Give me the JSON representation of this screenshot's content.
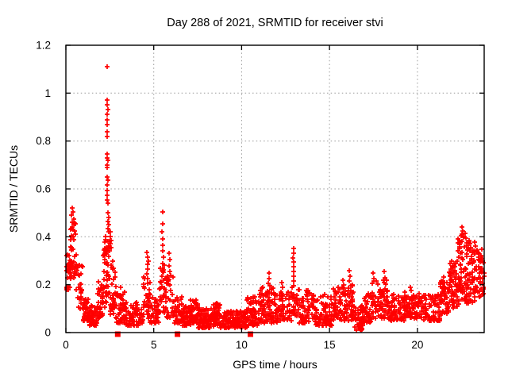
{
  "page": {
    "background": "#ffffff"
  },
  "chart_data": {
    "type": "scatter",
    "title": "Day 288 of 2021, SRMTID for receiver stvi",
    "xlabel": "GPS time / hours",
    "ylabel": "SRMTID / TECUs",
    "xlim": [
      0,
      23.8
    ],
    "ylim": [
      0,
      1.2
    ],
    "xticks": [
      0,
      5,
      10,
      15,
      20
    ],
    "xtick_labels": [
      "0",
      "5",
      "10",
      "15",
      "20"
    ],
    "yticks": [
      0,
      0.2,
      0.4,
      0.6,
      0.8,
      1,
      1.2
    ],
    "ytick_labels": [
      "0",
      "0.2",
      "0.4",
      "0.6",
      "0.8",
      "1",
      "1.2"
    ],
    "grid": {
      "show": true,
      "color": "#9a9a9a",
      "style": "dotted"
    },
    "axis_color": "#000000",
    "point_color": "#ff0000",
    "legend": "none",
    "series": [
      {
        "name": "SRMTID",
        "marker": "plus",
        "color": "#ff0000",
        "prng_seed": 288,
        "peak_points": [
          [
            2.33,
            1.11
          ],
          [
            2.36,
            0.97
          ],
          [
            2.34,
            0.95
          ],
          [
            2.38,
            0.93
          ],
          [
            2.35,
            0.91
          ],
          [
            2.37,
            0.89
          ],
          [
            2.34,
            0.87
          ],
          [
            2.36,
            0.84
          ],
          [
            2.33,
            0.82
          ],
          [
            2.37,
            0.745
          ],
          [
            2.35,
            0.73
          ],
          [
            2.38,
            0.72
          ],
          [
            2.36,
            0.7
          ],
          [
            2.34,
            0.69
          ],
          [
            2.36,
            0.65
          ],
          [
            2.38,
            0.635
          ],
          [
            2.35,
            0.615
          ],
          [
            2.37,
            0.595
          ],
          [
            2.34,
            0.575
          ],
          [
            2.36,
            0.555
          ],
          [
            2.38,
            0.54
          ],
          [
            2.4,
            0.5
          ],
          [
            2.42,
            0.48
          ],
          [
            2.39,
            0.465
          ],
          [
            2.43,
            0.45
          ],
          [
            2.41,
            0.435
          ],
          [
            2.44,
            0.42
          ],
          [
            2.52,
            0.42
          ],
          [
            2.55,
            0.4
          ],
          [
            2.57,
            0.385
          ],
          [
            2.53,
            0.37
          ],
          [
            2.56,
            0.355
          ],
          [
            0.36,
            0.52
          ],
          [
            0.4,
            0.505
          ],
          [
            0.33,
            0.49
          ],
          [
            0.43,
            0.475
          ],
          [
            0.38,
            0.46
          ],
          [
            0.45,
            0.455
          ],
          [
            0.35,
            0.44
          ],
          [
            0.41,
            0.43
          ],
          [
            4.62,
            0.335
          ],
          [
            4.65,
            0.315
          ],
          [
            4.68,
            0.3
          ],
          [
            4.63,
            0.285
          ],
          [
            4.66,
            0.265
          ],
          [
            4.61,
            0.245
          ],
          [
            4.67,
            0.225
          ],
          [
            4.64,
            0.205
          ],
          [
            5.5,
            0.505
          ],
          [
            5.52,
            0.455
          ],
          [
            5.48,
            0.42
          ],
          [
            5.53,
            0.39
          ],
          [
            5.51,
            0.365
          ],
          [
            5.49,
            0.34
          ],
          [
            5.54,
            0.315
          ],
          [
            5.52,
            0.29
          ],
          [
            5.88,
            0.33
          ],
          [
            5.91,
            0.305
          ],
          [
            5.86,
            0.28
          ],
          [
            5.93,
            0.255
          ],
          [
            11.55,
            0.25
          ],
          [
            11.58,
            0.225
          ],
          [
            11.52,
            0.205
          ],
          [
            11.62,
            0.195
          ],
          [
            12.28,
            0.21
          ],
          [
            12.33,
            0.19
          ],
          [
            12.94,
            0.35
          ],
          [
            12.96,
            0.33
          ],
          [
            12.93,
            0.31
          ],
          [
            12.97,
            0.295
          ],
          [
            12.95,
            0.275
          ],
          [
            12.98,
            0.255
          ],
          [
            12.94,
            0.235
          ],
          [
            12.96,
            0.215
          ],
          [
            15.78,
            0.22
          ],
          [
            15.82,
            0.2
          ],
          [
            16.14,
            0.26
          ],
          [
            16.18,
            0.235
          ],
          [
            16.11,
            0.215
          ],
          [
            17.47,
            0.25
          ],
          [
            17.52,
            0.225
          ],
          [
            17.44,
            0.205
          ],
          [
            18.12,
            0.255
          ],
          [
            18.16,
            0.23
          ],
          [
            18.09,
            0.21
          ],
          [
            19.58,
            0.19
          ],
          [
            19.63,
            0.175
          ],
          [
            21.95,
            0.3
          ],
          [
            22.0,
            0.28
          ],
          [
            22.05,
            0.26
          ],
          [
            22.4,
            0.35
          ],
          [
            22.45,
            0.33
          ],
          [
            22.55,
            0.44
          ],
          [
            22.58,
            0.425
          ],
          [
            22.52,
            0.41
          ],
          [
            22.62,
            0.4
          ],
          [
            22.7,
            0.415
          ],
          [
            22.75,
            0.395
          ],
          [
            22.8,
            0.375
          ],
          [
            22.95,
            0.385
          ],
          [
            23.0,
            0.37
          ],
          [
            23.05,
            0.355
          ],
          [
            23.1,
            0.34
          ],
          [
            23.3,
            0.36
          ],
          [
            23.4,
            0.345
          ],
          [
            23.5,
            0.33
          ],
          [
            23.6,
            0.315
          ],
          [
            23.7,
            0.3
          ]
        ],
        "bands": [
          [
            0.02,
            0.25,
            0.17,
            0.33,
            24,
            1.0
          ],
          [
            0.25,
            0.6,
            0.22,
            0.46,
            40,
            1.0
          ],
          [
            0.6,
            0.95,
            0.1,
            0.3,
            30,
            1.2
          ],
          [
            0.95,
            1.3,
            0.05,
            0.15,
            40,
            1.5
          ],
          [
            1.3,
            1.8,
            0.03,
            0.12,
            55,
            1.5
          ],
          [
            1.8,
            2.1,
            0.06,
            0.22,
            35,
            1.3
          ],
          [
            2.1,
            2.32,
            0.1,
            0.44,
            32,
            1.0
          ],
          [
            2.32,
            2.5,
            0.14,
            0.4,
            20,
            1.0
          ],
          [
            2.5,
            2.85,
            0.07,
            0.3,
            30,
            1.5
          ],
          [
            2.85,
            3.35,
            0.04,
            0.2,
            45,
            1.7
          ],
          [
            3.35,
            4.4,
            0.03,
            0.13,
            80,
            1.6
          ],
          [
            4.4,
            4.8,
            0.06,
            0.24,
            32,
            1.3
          ],
          [
            4.8,
            5.3,
            0.04,
            0.15,
            42,
            1.5
          ],
          [
            5.3,
            5.7,
            0.08,
            0.3,
            34,
            1.2
          ],
          [
            5.7,
            6.1,
            0.06,
            0.24,
            30,
            1.4
          ],
          [
            6.1,
            6.6,
            0.04,
            0.15,
            42,
            1.5
          ],
          [
            6.6,
            7.1,
            0.03,
            0.11,
            52,
            1.4
          ],
          [
            7.1,
            7.5,
            0.04,
            0.14,
            45,
            1.4
          ],
          [
            7.5,
            8.4,
            0.02,
            0.1,
            95,
            1.4
          ],
          [
            8.4,
            8.8,
            0.03,
            0.13,
            50,
            1.4
          ],
          [
            8.8,
            10.3,
            0.02,
            0.09,
            150,
            1.3
          ],
          [
            10.3,
            11.0,
            0.03,
            0.15,
            70,
            1.5
          ],
          [
            11.0,
            12.0,
            0.04,
            0.19,
            85,
            1.4
          ],
          [
            12.0,
            12.85,
            0.05,
            0.17,
            65,
            1.4
          ],
          [
            12.85,
            13.1,
            0.07,
            0.2,
            20,
            1.2
          ],
          [
            13.1,
            14.2,
            0.04,
            0.18,
            85,
            1.6
          ],
          [
            14.2,
            15.2,
            0.03,
            0.16,
            80,
            1.6
          ],
          [
            15.2,
            16.0,
            0.05,
            0.19,
            70,
            1.4
          ],
          [
            16.0,
            16.4,
            0.05,
            0.2,
            35,
            1.3
          ],
          [
            16.4,
            16.9,
            0.01,
            0.12,
            48,
            1.3
          ],
          [
            16.9,
            17.4,
            0.04,
            0.17,
            45,
            1.4
          ],
          [
            17.4,
            18.3,
            0.06,
            0.22,
            70,
            1.4
          ],
          [
            18.3,
            19.3,
            0.05,
            0.16,
            80,
            1.4
          ],
          [
            19.3,
            20.3,
            0.06,
            0.17,
            80,
            1.4
          ],
          [
            20.3,
            21.3,
            0.05,
            0.16,
            80,
            1.4
          ],
          [
            21.3,
            21.8,
            0.08,
            0.24,
            50,
            1.2
          ],
          [
            21.8,
            22.3,
            0.1,
            0.31,
            55,
            1.1
          ],
          [
            22.3,
            22.8,
            0.12,
            0.41,
            58,
            1.1
          ],
          [
            22.8,
            23.3,
            0.12,
            0.38,
            58,
            1.1
          ],
          [
            23.3,
            23.79,
            0.14,
            0.35,
            42,
            1.1
          ]
        ]
      },
      {
        "name": "zero-flags",
        "marker": "filled-square",
        "color": "#ff0000",
        "points": [
          [
            2.95,
            0
          ],
          [
            6.35,
            0
          ],
          [
            10.5,
            0
          ]
        ]
      }
    ]
  }
}
